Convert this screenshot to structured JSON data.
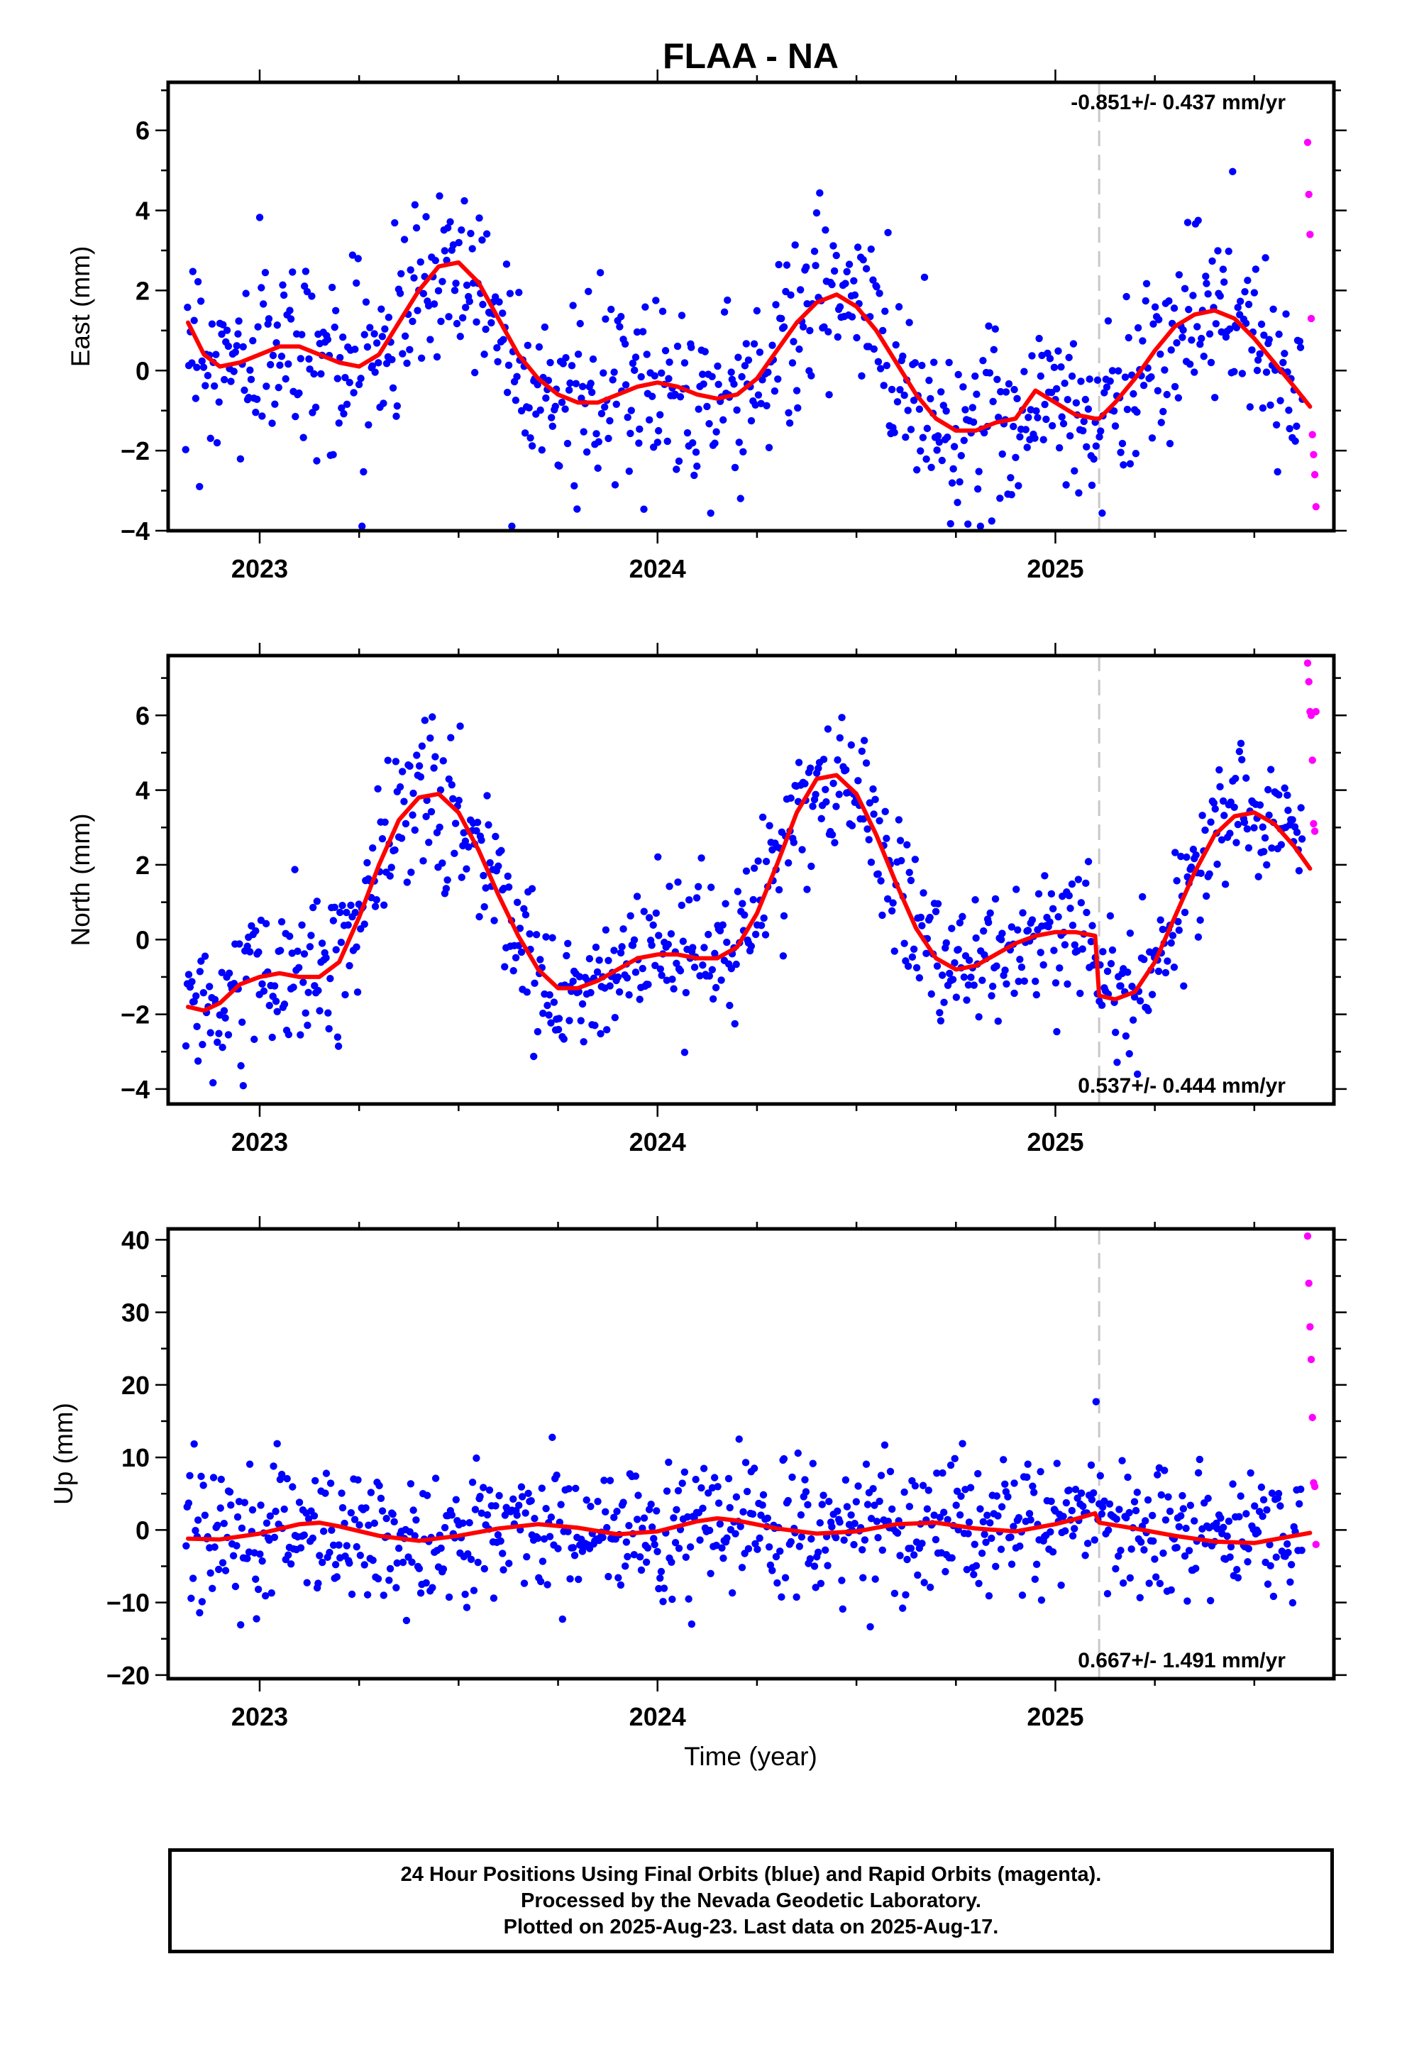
{
  "figure": {
    "title": "FLAA - NA",
    "x_axis_label": "Time (year)",
    "caption_lines": [
      "24 Hour Positions Using Final Orbits (blue) and Rapid Orbits (magenta).",
      "Processed by the Nevada Geodetic Laboratory.",
      "Plotted on 2025-Aug-23. Last data on 2025-Aug-17."
    ]
  },
  "colors": {
    "final_orbits": "#0000ff",
    "rapid_orbits": "#ff00ff",
    "model_fit": "#ff0000",
    "event_line": "#c8c8c8"
  },
  "chart_data": [
    {
      "type": "scatter",
      "ylabel": "East (mm)",
      "rate_text": "-0.851+/- 0.437 mm/yr",
      "rate_position": "top-right",
      "xlim": [
        2022.77,
        2025.7
      ],
      "ylim": [
        -4,
        7.2
      ],
      "yticks": [
        -4,
        -2,
        0,
        2,
        4,
        6
      ],
      "xticks": [
        2023,
        2024,
        2025
      ],
      "event_epoch": 2025.11,
      "model_fit": {
        "x": [
          2022.82,
          2022.86,
          2022.9,
          2022.95,
          2023.0,
          2023.05,
          2023.1,
          2023.15,
          2023.2,
          2023.25,
          2023.3,
          2023.35,
          2023.4,
          2023.45,
          2023.5,
          2023.55,
          2023.6,
          2023.65,
          2023.7,
          2023.75,
          2023.8,
          2023.85,
          2023.9,
          2023.95,
          2024.0,
          2024.05,
          2024.1,
          2024.15,
          2024.2,
          2024.25,
          2024.3,
          2024.35,
          2024.4,
          2024.45,
          2024.5,
          2024.55,
          2024.6,
          2024.65,
          2024.7,
          2024.75,
          2024.8,
          2024.85,
          2024.9,
          2024.95,
          2025.0,
          2025.05,
          2025.1,
          2025.11,
          2025.15,
          2025.2,
          2025.25,
          2025.3,
          2025.35,
          2025.4,
          2025.45,
          2025.5,
          2025.55,
          2025.6,
          2025.64
        ],
        "y": [
          1.2,
          0.4,
          0.1,
          0.2,
          0.4,
          0.6,
          0.6,
          0.4,
          0.2,
          0.1,
          0.4,
          1.2,
          2.0,
          2.6,
          2.7,
          2.2,
          1.3,
          0.4,
          -0.2,
          -0.6,
          -0.8,
          -0.8,
          -0.6,
          -0.4,
          -0.3,
          -0.4,
          -0.6,
          -0.7,
          -0.6,
          -0.2,
          0.5,
          1.2,
          1.7,
          1.9,
          1.6,
          1.0,
          0.2,
          -0.6,
          -1.2,
          -1.5,
          -1.5,
          -1.3,
          -1.2,
          -0.5,
          -0.8,
          -1.1,
          -1.2,
          -1.2,
          -0.8,
          -0.2,
          0.5,
          1.1,
          1.4,
          1.5,
          1.3,
          0.8,
          0.2,
          -0.4,
          -0.9
        ]
      },
      "final_points": {
        "count": 820,
        "scatter_sigma": 1.15
      },
      "rapid_points": {
        "x": [
          2025.634,
          2025.637,
          2025.64,
          2025.643,
          2025.646,
          2025.649,
          2025.652,
          2025.655
        ],
        "y": [
          5.7,
          4.4,
          3.4,
          1.3,
          -1.6,
          -2.1,
          -2.6,
          -3.4
        ]
      }
    },
    {
      "type": "scatter",
      "ylabel": "North (mm)",
      "rate_text": "0.537+/- 0.444 mm/yr",
      "rate_position": "bottom-right",
      "xlim": [
        2022.77,
        2025.7
      ],
      "ylim": [
        -4.4,
        7.6
      ],
      "yticks": [
        -4,
        -2,
        0,
        2,
        4,
        6
      ],
      "xticks": [
        2023,
        2024,
        2025
      ],
      "event_epoch": 2025.11,
      "model_fit": {
        "x": [
          2022.82,
          2022.86,
          2022.9,
          2022.95,
          2023.0,
          2023.05,
          2023.1,
          2023.15,
          2023.2,
          2023.25,
          2023.3,
          2023.35,
          2023.4,
          2023.45,
          2023.5,
          2023.55,
          2023.6,
          2023.65,
          2023.7,
          2023.75,
          2023.8,
          2023.85,
          2023.9,
          2023.95,
          2024.0,
          2024.05,
          2024.1,
          2024.15,
          2024.2,
          2024.25,
          2024.3,
          2024.35,
          2024.4,
          2024.45,
          2024.5,
          2024.55,
          2024.6,
          2024.65,
          2024.7,
          2024.75,
          2024.8,
          2024.85,
          2024.9,
          2024.95,
          2025.0,
          2025.05,
          2025.1,
          2025.11,
          2025.15,
          2025.2,
          2025.25,
          2025.3,
          2025.35,
          2025.4,
          2025.45,
          2025.5,
          2025.55,
          2025.6,
          2025.64
        ],
        "y": [
          -1.8,
          -1.9,
          -1.7,
          -1.2,
          -1.0,
          -0.9,
          -1.0,
          -1.0,
          -0.6,
          0.6,
          2.0,
          3.2,
          3.8,
          3.9,
          3.4,
          2.4,
          1.2,
          0.1,
          -0.8,
          -1.3,
          -1.3,
          -1.1,
          -0.8,
          -0.5,
          -0.4,
          -0.4,
          -0.5,
          -0.5,
          -0.2,
          0.7,
          2.0,
          3.4,
          4.3,
          4.4,
          3.9,
          2.8,
          1.5,
          0.3,
          -0.5,
          -0.8,
          -0.7,
          -0.4,
          -0.1,
          0.1,
          0.2,
          0.2,
          0.1,
          -1.5,
          -1.6,
          -1.4,
          -0.6,
          0.6,
          1.8,
          2.8,
          3.3,
          3.4,
          3.1,
          2.5,
          1.9
        ]
      },
      "final_points": {
        "count": 820,
        "scatter_sigma": 0.95
      },
      "rapid_points": {
        "x": [
          2025.634,
          2025.637,
          2025.64,
          2025.643,
          2025.646,
          2025.649,
          2025.652,
          2025.655
        ],
        "y": [
          7.4,
          6.9,
          6.1,
          6.0,
          4.8,
          3.1,
          2.9,
          6.1
        ]
      }
    },
    {
      "type": "scatter",
      "ylabel": "Up (mm)",
      "rate_text": "0.667+/- 1.491 mm/yr",
      "rate_position": "bottom-right",
      "xlim": [
        2022.77,
        2025.7
      ],
      "ylim": [
        -20.5,
        41.5
      ],
      "yticks": [
        -20,
        -10,
        0,
        10,
        20,
        30,
        40
      ],
      "xticks": [
        2023,
        2024,
        2025
      ],
      "event_epoch": 2025.11,
      "model_fit": {
        "x": [
          2022.82,
          2022.9,
          2023.0,
          2023.1,
          2023.15,
          2023.2,
          2023.3,
          2023.4,
          2023.5,
          2023.6,
          2023.7,
          2023.8,
          2023.9,
          2024.0,
          2024.1,
          2024.15,
          2024.2,
          2024.3,
          2024.4,
          2024.5,
          2024.6,
          2024.7,
          2024.8,
          2024.9,
          2025.0,
          2025.05,
          2025.1,
          2025.11,
          2025.2,
          2025.3,
          2025.4,
          2025.5,
          2025.6,
          2025.64
        ],
        "y": [
          -1.2,
          -1.3,
          -0.5,
          0.8,
          1.0,
          0.5,
          -0.8,
          -1.5,
          -0.8,
          0.2,
          0.8,
          0.3,
          -0.6,
          -0.2,
          1.2,
          1.6,
          1.3,
          0.2,
          -0.5,
          -0.2,
          0.8,
          1.0,
          0.2,
          -0.2,
          0.8,
          1.5,
          2.3,
          1.0,
          0.2,
          -0.8,
          -1.6,
          -1.8,
          -0.8,
          -0.4
        ]
      },
      "final_points": {
        "count": 820,
        "scatter_sigma": 4.6
      },
      "rapid_points": {
        "x": [
          2025.634,
          2025.637,
          2025.64,
          2025.643,
          2025.646,
          2025.649,
          2025.652,
          2025.655
        ],
        "y": [
          40.5,
          34.0,
          28.0,
          23.5,
          15.5,
          6.5,
          6.0,
          -2.0
        ]
      }
    }
  ]
}
